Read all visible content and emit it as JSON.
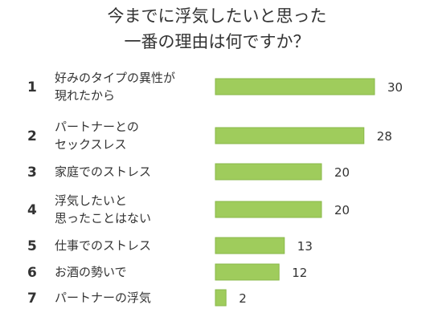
{
  "chart_data": {
    "type": "bar",
    "orientation": "horizontal",
    "title": [
      "今までに浮気したいと思った",
      "一番の理由は何ですか？"
    ],
    "bar_color": "#9fcc5c",
    "bar_edge_color": "#8ab84a",
    "categories": [
      {
        "rank": "1",
        "label": [
          "好みのタイプの異性が",
          "現れたから"
        ]
      },
      {
        "rank": "2",
        "label": [
          "パートナーとの",
          "セックスレス"
        ]
      },
      {
        "rank": "3",
        "label": [
          "家庭でのストレス"
        ]
      },
      {
        "rank": "4",
        "label": [
          "浮気したいと",
          "思ったことはない"
        ]
      },
      {
        "rank": "5",
        "label": [
          "仕事でのストレス"
        ]
      },
      {
        "rank": "6",
        "label": [
          "お酒の勢いで"
        ]
      },
      {
        "rank": "7",
        "label": [
          "パートナーの浮気"
        ]
      }
    ],
    "values": [
      30,
      28,
      20,
      20,
      13,
      12,
      2
    ],
    "xlim": [
      0,
      30
    ]
  }
}
